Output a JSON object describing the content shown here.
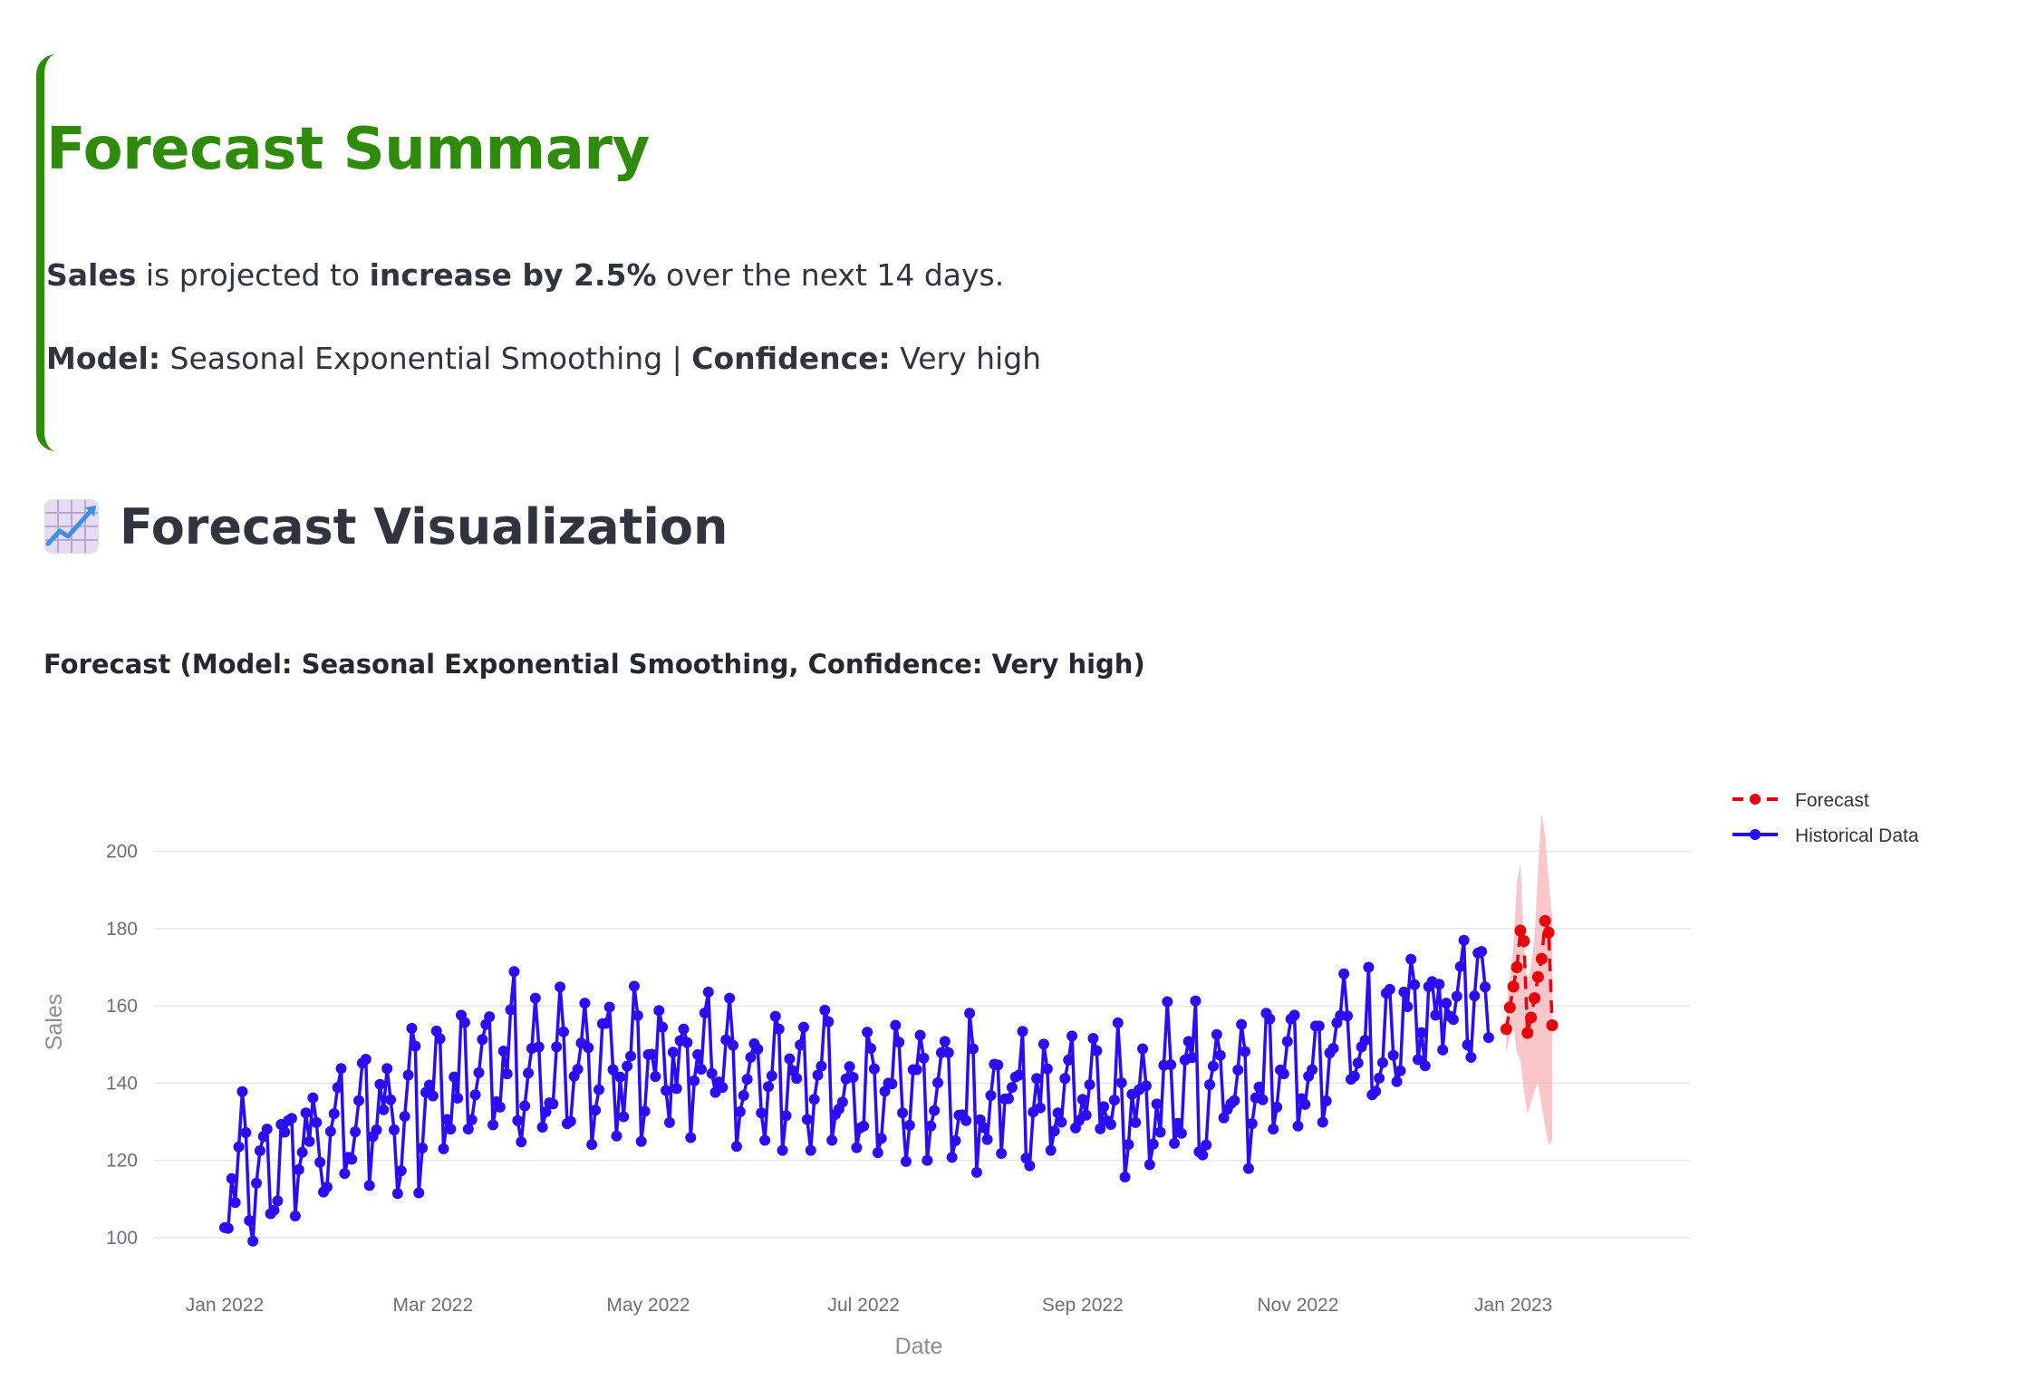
{
  "summary": {
    "title": "Forecast Summary",
    "metric": "Sales",
    "text_projected": " is projected to ",
    "change": "increase by 2.5%",
    "text_horizon": " over the next 14 days.",
    "model_label": "Model:",
    "model_value": " Seasonal Exponential Smoothing | ",
    "confidence_label": "Confidence:",
    "confidence_value": " Very high"
  },
  "visualization": {
    "icon": "chart-increasing-icon",
    "title": "Forecast Visualization"
  },
  "colors": {
    "accent": "#2e8b0c",
    "historical": "#2a0cf5",
    "forecast": "#e8000b",
    "band": "#f7b3b8"
  },
  "chart_data": {
    "type": "line",
    "title": "Forecast (Model: Seasonal Exponential Smoothing, Confidence: Very high)",
    "xlabel": "Date",
    "ylabel": "Sales",
    "x_range": [
      "2021-12-12",
      "2023-02-20"
    ],
    "ylim": [
      92,
      214
    ],
    "x_ticks": [
      "2022-01-01",
      "2022-03-01",
      "2022-05-01",
      "2022-07-01",
      "2022-09-01",
      "2022-11-01",
      "2023-01-01"
    ],
    "x_tick_labels": [
      "Jan 2022",
      "Mar 2022",
      "May 2022",
      "Jul 2022",
      "Sep 2022",
      "Nov 2022",
      "Jan 2023"
    ],
    "y_ticks": [
      100,
      120,
      140,
      160,
      180,
      200
    ],
    "grid": true,
    "legend_position": "top-right",
    "series": [
      {
        "name": "Historical Data",
        "start_date": "2022-01-01",
        "color": "#2a0cf5",
        "style": "solid",
        "values": [
          102.6,
          102.4,
          115.3,
          109.1,
          123.5,
          137.8,
          127.2,
          104.4,
          99.1,
          114.1,
          122.5,
          126.2,
          128.1,
          106.2,
          107.1,
          109.5,
          129.3,
          127.3,
          130.3,
          130.9,
          105.6,
          117.6,
          122.1,
          132.3,
          124.9,
          136.2,
          129.8,
          119.5,
          111.8,
          113.1,
          127.5,
          132.1,
          138.9,
          143.8,
          116.6,
          120.8,
          120.3,
          127.4,
          135.5,
          145.2,
          146.2,
          113.5,
          126.2,
          127.9,
          139.7,
          133.1,
          143.8,
          135.7,
          127.9,
          111.4,
          117.3,
          131.4,
          142.1,
          154.2,
          149.6,
          111.6,
          123.2,
          137.6,
          139.5,
          136.7,
          153.5,
          151.5,
          123.0,
          130.6,
          128.1,
          141.6,
          136.1,
          157.6,
          155.7,
          128.1,
          130.5,
          137.0,
          142.7,
          151.3,
          155.2,
          157.2,
          129.2,
          135.2,
          133.8,
          148.3,
          142.4,
          159.0,
          168.9,
          130.3,
          124.8,
          134.1,
          142.6,
          149.0,
          162.0,
          149.4,
          128.6,
          132.6,
          134.9,
          134.6,
          149.4,
          164.9,
          153.3,
          129.5,
          130.1,
          141.8,
          143.6,
          150.4,
          160.7,
          149.2,
          124.1,
          133.0,
          138.3,
          155.4,
          155.5,
          159.7,
          143.5,
          126.3,
          141.6,
          131.3,
          144.4,
          147.0,
          165.1,
          157.5,
          124.9,
          132.7,
          147.4,
          147.5,
          141.7,
          158.8,
          154.5,
          138.1,
          129.8,
          148.0,
          138.6,
          151.0,
          154.0,
          150.5,
          125.9,
          140.6,
          147.4,
          143.6,
          158.2,
          163.6,
          142.5,
          137.6,
          140.3,
          138.9,
          151.2,
          162.0,
          149.8,
          123.6,
          132.6,
          136.8,
          141.0,
          146.7,
          150.2,
          148.8,
          132.3,
          125.2,
          139.1,
          141.9,
          157.3,
          154.0,
          122.6,
          131.6,
          146.3,
          143.2,
          141.2,
          149.9,
          154.5,
          130.6,
          122.6,
          135.8,
          142.1,
          144.4,
          158.9,
          155.9,
          125.2,
          131.9,
          133.3,
          135.1,
          141.1,
          144.3,
          141.5,
          123.3,
          128.4,
          128.9,
          153.2,
          149.0,
          143.7,
          122.0,
          125.7,
          137.9,
          140.0,
          139.8,
          155.0,
          150.6,
          132.3,
          119.7,
          129.1,
          143.5,
          143.5,
          152.4,
          146.5,
          120.0,
          128.9,
          132.9,
          140.1,
          147.9,
          150.8,
          147.9,
          120.8,
          125.1,
          131.7,
          131.8,
          130.3,
          158.1,
          148.9,
          116.9,
          130.5,
          128.5,
          125.4,
          136.8,
          144.9,
          144.7,
          121.8,
          135.9,
          136.0,
          138.9,
          141.6,
          142.1,
          153.4,
          120.6,
          118.6,
          132.5,
          141.2,
          133.6,
          150.1,
          143.7,
          122.6,
          127.6,
          132.3,
          129.9,
          141.2,
          146.0,
          152.2,
          128.4,
          130.3,
          135.8,
          131.7,
          139.6,
          151.6,
          148.4,
          128.2,
          133.9,
          130.2,
          129.3,
          135.6,
          155.6,
          140.1,
          115.7,
          124.1,
          137.1,
          129.8,
          138.3,
          148.9,
          139.3,
          118.9,
          124.2,
          134.6,
          127.3,
          144.6,
          161.1,
          144.8,
          124.4,
          129.6,
          127.0,
          146.0,
          150.8,
          146.6,
          161.3,
          122.2,
          121.4,
          124.0,
          139.6,
          144.4,
          152.6,
          147.2,
          131.0,
          133.2,
          134.7,
          135.5,
          143.4,
          155.2,
          148.2,
          117.9,
          129.5,
          136.2,
          139.0,
          135.7,
          158.1,
          156.6,
          128.1,
          133.8,
          143.4,
          142.4,
          150.8,
          156.6,
          157.6,
          128.9,
          136.0,
          134.5,
          141.8,
          143.5,
          154.8,
          154.8,
          129.9,
          135.4,
          147.8,
          149.0,
          155.6,
          157.5,
          168.3,
          157.4,
          141.0,
          141.8,
          145.2,
          149.4,
          151.1,
          170.0,
          137.0,
          137.9,
          141.3,
          145.3,
          163.3,
          164.3,
          147.2,
          140.4,
          143.2,
          163.6,
          159.8,
          172.1,
          165.5,
          146.1,
          153.1,
          144.5,
          165.0,
          166.3,
          157.6,
          165.6,
          148.6,
          160.7,
          157.3,
          156.5,
          162.5,
          170.2,
          177.0,
          149.9,
          146.7,
          162.6,
          173.7,
          174.1,
          164.9,
          151.8
        ]
      },
      {
        "name": "Forecast",
        "start_date": "2022-12-30",
        "color": "#e8000b",
        "style": "dashed",
        "values": [
          154.0,
          159.6,
          165.0,
          170.0,
          179.5,
          176.8,
          153.0,
          157.0,
          162.0,
          167.5,
          172.2,
          182.0,
          179.0,
          155.0
        ],
        "lower": [
          148.0,
          152.0,
          155.0,
          148.0,
          146.0,
          138.0,
          132.0,
          135.0,
          138.0,
          140.0,
          134.0,
          129.0,
          124.0,
          125.0
        ],
        "upper": [
          160.0,
          167.0,
          175.0,
          192.0,
          197.0,
          176.0,
          166.0,
          170.0,
          178.0,
          195.0,
          210.0,
          204.0,
          192.0,
          183.0
        ]
      }
    ]
  }
}
